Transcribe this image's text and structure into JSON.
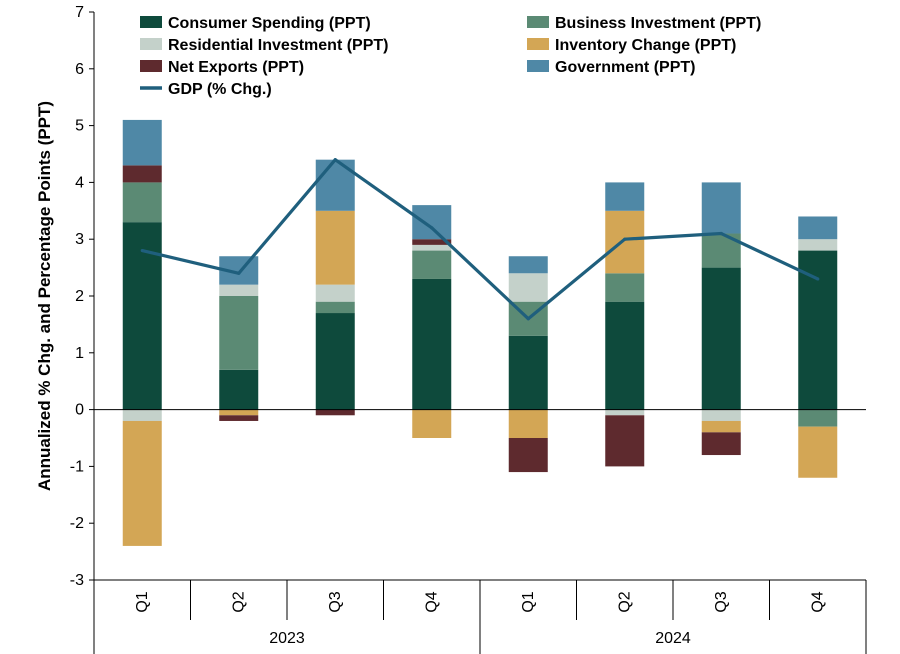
{
  "chart_data": {
    "type": "bar",
    "stacked": true,
    "title": "",
    "xlabel": "",
    "ylabel": "Annualized % Chg. and Percentage Points (PPT)",
    "ylim": [
      -3,
      7
    ],
    "yticks": [
      -3,
      -2,
      -1,
      0,
      1,
      2,
      3,
      4,
      5,
      6,
      7
    ],
    "categories": [
      "Q1",
      "Q2",
      "Q3",
      "Q4",
      "Q1",
      "Q2",
      "Q3",
      "Q4"
    ],
    "groups": [
      {
        "label": "2023",
        "start": 0,
        "end": 3
      },
      {
        "label": "2024",
        "start": 4,
        "end": 7
      }
    ],
    "series": [
      {
        "name": "Consumer Spending (PPT)",
        "color": "#0e4a3c",
        "values": [
          3.3,
          0.7,
          1.7,
          2.3,
          1.3,
          1.9,
          2.5,
          2.8
        ]
      },
      {
        "name": "Business Investment (PPT)",
        "color": "#5b8a74",
        "values": [
          0.7,
          1.3,
          0.2,
          0.5,
          0.6,
          0.5,
          0.6,
          -0.3
        ]
      },
      {
        "name": "Residential Investment (PPT)",
        "color": "#c4d1ca",
        "values": [
          -0.2,
          0.2,
          0.3,
          0.1,
          0.5,
          -0.1,
          -0.2,
          0.2
        ]
      },
      {
        "name": "Inventory Change (PPT)",
        "color": "#d3a655",
        "values": [
          -2.2,
          -0.1,
          1.3,
          -0.5,
          -0.5,
          1.1,
          -0.2,
          -0.9
        ]
      },
      {
        "name": "Net Exports (PPT)",
        "color": "#5e2a2e",
        "values": [
          0.3,
          -0.1,
          -0.1,
          0.1,
          -0.6,
          -0.9,
          -0.4,
          0.0
        ]
      },
      {
        "name": "Government (PPT)",
        "color": "#4f88a6",
        "values": [
          0.8,
          0.5,
          0.9,
          0.6,
          0.3,
          0.5,
          0.9,
          0.4
        ]
      }
    ],
    "line": {
      "name": "GDP (% Chg.)",
      "color": "#1f5f7d",
      "values": [
        2.8,
        2.4,
        4.4,
        3.2,
        1.6,
        3.0,
        3.1,
        2.3
      ]
    },
    "legend_position": "top"
  }
}
